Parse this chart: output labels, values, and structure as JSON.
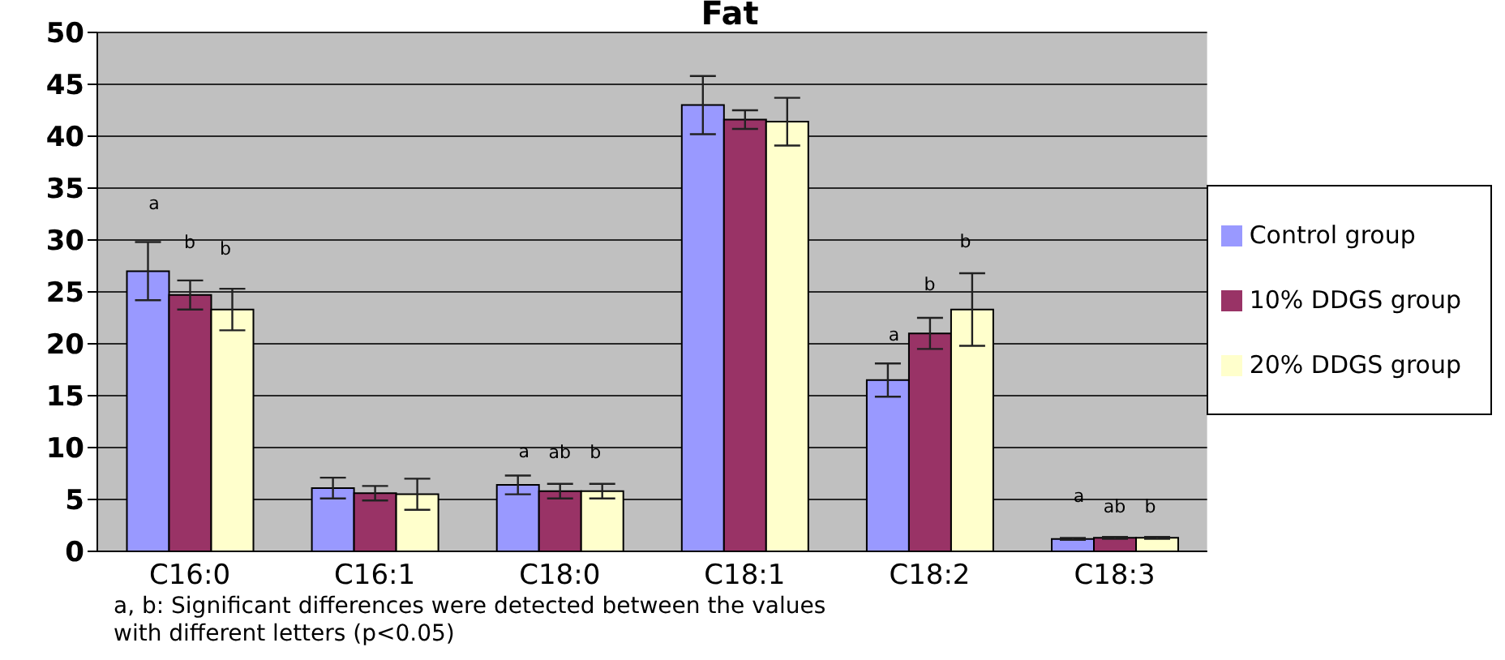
{
  "chart_data": {
    "type": "bar",
    "title": "Fat",
    "categories": [
      "C16:0",
      "C16:1",
      "C18:0",
      "C18:1",
      "C18:2",
      "C18:3"
    ],
    "series": [
      {
        "name": "Control group",
        "color": "#9999ff",
        "values": [
          27.0,
          6.1,
          6.4,
          43.0,
          16.5,
          1.2
        ],
        "errors": [
          2.8,
          1.0,
          0.9,
          2.8,
          1.6,
          0.1
        ]
      },
      {
        "name": "10% DDGS group",
        "color": "#993366",
        "values": [
          24.7,
          5.6,
          5.8,
          41.6,
          21.0,
          1.3
        ],
        "errors": [
          1.4,
          0.7,
          0.7,
          0.9,
          1.5,
          0.1
        ]
      },
      {
        "name": "20% DDGS group",
        "color": "#ffffcc",
        "values": [
          23.3,
          5.5,
          5.8,
          41.4,
          23.3,
          1.3
        ],
        "errors": [
          2.0,
          1.5,
          0.7,
          2.3,
          3.5,
          0.1
        ]
      }
    ],
    "ylim": [
      0,
      50
    ],
    "yticks": [
      0,
      5,
      10,
      15,
      20,
      25,
      30,
      35,
      40,
      45,
      50
    ],
    "grid": "y",
    "legend": "right",
    "annotations": [
      "a",
      "b",
      "b",
      "a",
      "ab",
      "b",
      "a",
      "b",
      "b",
      "a",
      "ab",
      "b",
      "a, b: Significant differences were detected between the values with different letters (p<0.05)"
    ]
  }
}
